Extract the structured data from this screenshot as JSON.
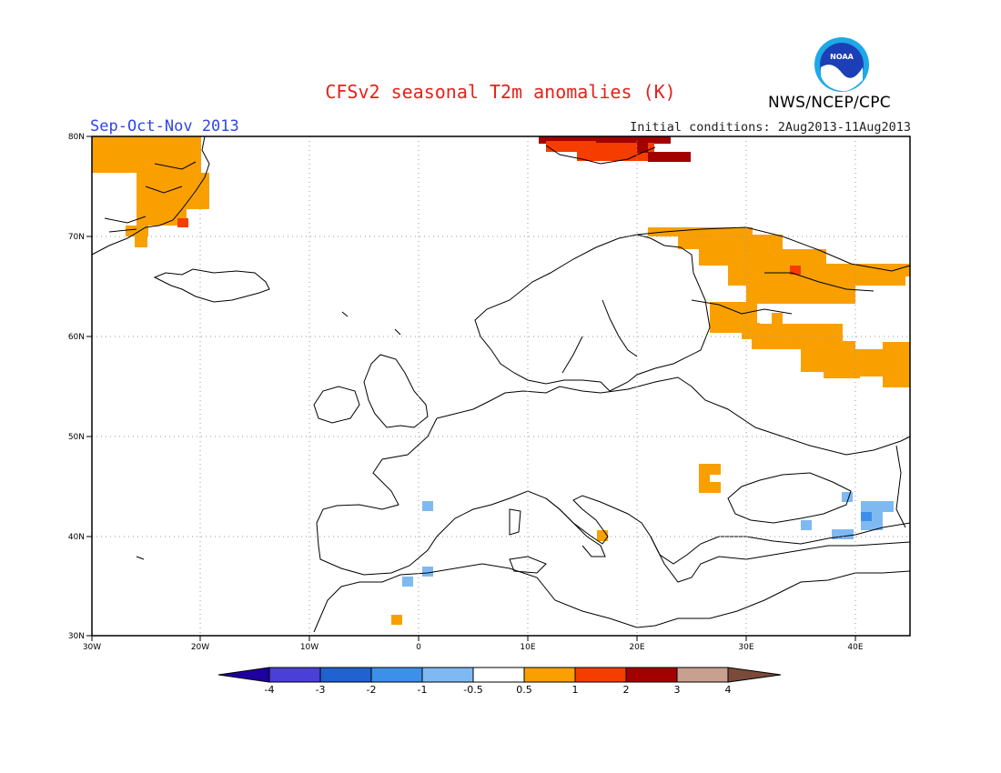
{
  "title": "CFSv2 seasonal T2m anomalies (K)",
  "season": "Sep-Oct-Nov 2013",
  "initial_conditions": "Initial conditions: 2Aug2013-11Aug2013",
  "organization": "NWS/NCEP/CPC",
  "logo_text": "NOAA",
  "map": {
    "lon_range": [
      -30,
      45
    ],
    "lat_range": [
      30,
      80
    ],
    "lon_ticks": [
      "30W",
      "20W",
      "10W",
      "0",
      "10E",
      "20E",
      "30E",
      "40E"
    ],
    "lat_ticks": [
      "30N",
      "40N",
      "50N",
      "60N",
      "70N",
      "80N"
    ],
    "grid": "dotted",
    "background": "#ffffff"
  },
  "colorbar": {
    "labels": [
      "-4",
      "-3",
      "-2",
      "-1",
      "-0.5",
      "0.5",
      "1",
      "2",
      "3",
      "4"
    ],
    "colors": [
      "#1e00a0",
      "#4a3fd6",
      "#1f62d0",
      "#3c90ea",
      "#7fb9f2",
      "#ffffff",
      "#f9a000",
      "#f53d00",
      "#a30000",
      "#c8a090",
      "#7a4b3a"
    ]
  },
  "anomaly_colors": {
    "warm_0_5_1": "#f9a000",
    "warm_1_2": "#f53d00",
    "warm_2_3": "#a30000",
    "cool_0_5_1": "#7fb9f2",
    "cool_1_2": "#3c90ea"
  }
}
